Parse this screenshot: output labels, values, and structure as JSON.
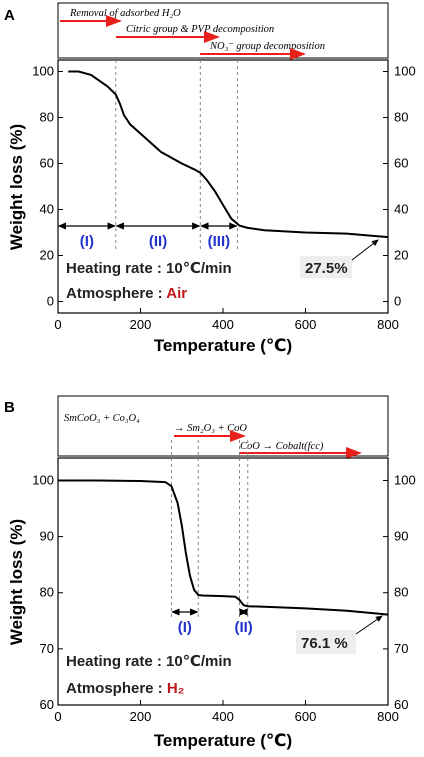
{
  "colors": {
    "arrow": "#e8211d",
    "region_label": "#2233cc",
    "atmosphere": "#c0171b",
    "axis": "#000000",
    "curve": "#000000"
  },
  "chart_data": [
    {
      "panel": "A",
      "type": "line",
      "xlabel": "Temperature (℃)",
      "ylabel": "Weight loss (%)",
      "xlim": [
        0,
        800
      ],
      "ylim": [
        -5,
        105
      ],
      "x_ticks": [
        "0",
        "200",
        "400",
        "600",
        "800"
      ],
      "y_ticks_left": [
        "0",
        "20",
        "40",
        "60",
        "80",
        "100"
      ],
      "y_ticks_right": [
        "0",
        "20",
        "40",
        "60",
        "80",
        "100"
      ],
      "series": [
        {
          "x": [
            25,
            50,
            80,
            100,
            120,
            140,
            150,
            160,
            175,
            200,
            250,
            300,
            330,
            345,
            360,
            380,
            400,
            420,
            440,
            460,
            500,
            600,
            700,
            800
          ],
          "y": [
            100,
            100,
            98.5,
            96,
            93.5,
            90,
            86,
            81,
            77,
            73,
            65,
            60,
            57.5,
            56,
            53,
            48,
            42,
            36,
            33,
            32,
            31,
            30,
            29.5,
            28
          ]
        }
      ],
      "decomposition_steps": [
        "Removal of adsorbed H₂O",
        "Citric group & PVP decomposition",
        "NO₃⁻ group decomposition"
      ],
      "regions": [
        {
          "label": "(I)",
          "x_from": 0,
          "x_to": 140
        },
        {
          "label": "(II)",
          "x_from": 140,
          "x_to": 345
        },
        {
          "label": "(III)",
          "x_from": 345,
          "x_to": 435
        }
      ],
      "heating_rate_label": "Heating rate : 10℃/min",
      "atmosphere_label": "Atmosphere : ",
      "atmosphere_value": "Air",
      "residual_label": "27.5%"
    },
    {
      "panel": "B",
      "type": "line",
      "xlabel": "Temperature (℃)",
      "ylabel": "Weight loss (%)",
      "xlim": [
        0,
        800
      ],
      "ylim": [
        60,
        104
      ],
      "x_ticks": [
        "0",
        "200",
        "400",
        "600",
        "800"
      ],
      "y_ticks_left": [
        "60",
        "70",
        "80",
        "90",
        "100"
      ],
      "y_ticks_right": [
        "60",
        "70",
        "80",
        "90",
        "100"
      ],
      "series": [
        {
          "x": [
            0,
            100,
            200,
            260,
            275,
            290,
            300,
            310,
            320,
            330,
            340,
            350,
            400,
            430,
            440,
            450,
            460,
            500,
            600,
            700,
            800
          ],
          "y": [
            100,
            100,
            99.9,
            99.7,
            99,
            96,
            92,
            87,
            83,
            80.5,
            79.6,
            79.5,
            79.4,
            79.3,
            78.7,
            77.8,
            77.6,
            77.5,
            77.2,
            76.8,
            76.1
          ]
        }
      ],
      "reaction_steps": [
        "SmCoO₃ + Co₃O₄",
        "→ Sm₂O₃ + CoO",
        "CoO → Cobalt(fcc)"
      ],
      "regions": [
        {
          "label": "(I)",
          "x_from": 275,
          "x_to": 340
        },
        {
          "label": "(II)",
          "x_from": 440,
          "x_to": 460
        }
      ],
      "heating_rate_label": "Heating rate : 10℃/min",
      "atmosphere_label": "Atmosphere : ",
      "atmosphere_value": "H₂",
      "residual_label": "76.1 %"
    }
  ]
}
